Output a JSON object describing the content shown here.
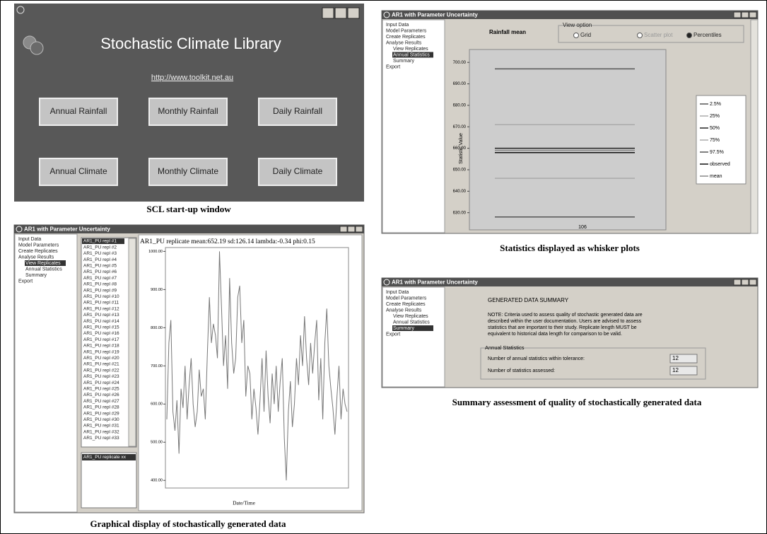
{
  "startup": {
    "title": "Stochastic Climate Library",
    "url": "http://www.toolkit.net.au",
    "buttons": [
      "Annual Rainfall",
      "Monthly Rainfall",
      "Daily Rainfall",
      "Annual Climate",
      "Monthly Climate",
      "Daily Climate"
    ],
    "caption": "SCL start-up window"
  },
  "whisker": {
    "window_title": "AR1 with Parameter Uncertainty",
    "tree": [
      "Input Data",
      "Model Parameters",
      "Create Replicates",
      "Analyse Results",
      "View Replicates",
      "Annual Statistics",
      "Summary",
      "Export"
    ],
    "selected": 5,
    "heading": "Rainfall mean",
    "view_option": "View option",
    "options": [
      "Grid",
      "Scatter plot",
      "Percentiles"
    ],
    "chosen_option": 2,
    "y_label": "Statistic Value",
    "ylim": [
      622,
      706
    ],
    "yticks": [
      {
        "value": 700,
        "label": "700.00"
      },
      {
        "value": 690,
        "label": "690.00"
      },
      {
        "value": 680,
        "label": "680.00"
      },
      {
        "value": 670,
        "label": "670.00"
      },
      {
        "value": 660,
        "label": "660.00"
      },
      {
        "value": 650,
        "label": "650.00"
      },
      {
        "value": 640,
        "label": "640.00"
      },
      {
        "value": 630,
        "label": "630.00"
      }
    ],
    "x_label": "106",
    "series": [
      {
        "name": "2.5%",
        "color": "#555555",
        "value": 628
      },
      {
        "name": "25%",
        "color": "#aaaaaa",
        "value": 646
      },
      {
        "name": "50%",
        "color": "#222222",
        "value": 660
      },
      {
        "name": "75%",
        "color": "#aaaaaa",
        "value": 671
      },
      {
        "name": "97.5%",
        "color": "#555555",
        "value": 697
      },
      {
        "name": "observed",
        "color": "#111111",
        "value": 658
      },
      {
        "name": "mean",
        "color": "#888888",
        "value": 659
      }
    ],
    "caption": "Statistics displayed as whisker plots"
  },
  "summary": {
    "window_title": "AR1 with Parameter Uncertainty",
    "tree": [
      "Input Data",
      "Model Parameters",
      "Create Replicates",
      "Analyse Results",
      "View Replicates",
      "Annual Statistics",
      "Summary",
      "Export"
    ],
    "selected": 6,
    "heading": "GENERATED DATA SUMMARY",
    "note": [
      "NOTE: Criteria used to assess quality of stochastic generated data are",
      "described within the user documentation. Users are advised to assess",
      "statistics that are important to their study. Replicate length MUST be",
      "equivalent to historical data length for comparison to be valid."
    ],
    "group": "Annual Statistics",
    "rows": [
      {
        "label": "Number of annual statistics within tolerance:",
        "value": 12
      },
      {
        "label": "Number of statistics assessed:",
        "value": 12
      }
    ],
    "caption": "Summary assessment of quality of stochastically generated data"
  },
  "replicates": {
    "window_title": "AR1 with Parameter Uncertainty",
    "tree": [
      "Input Data",
      "Model Parameters",
      "Create Replicates",
      "Analyse Results",
      "View Replicates",
      "Annual Statistics",
      "Summary",
      "Export"
    ],
    "selected": 4,
    "list": [
      "AR1_PU repl #1",
      "AR1_PU repl #2",
      "AR1_PU repl #3",
      "AR1_PU repl #4",
      "AR1_PU repl #5",
      "AR1_PU repl #6",
      "AR1_PU repl #7",
      "AR1_PU repl #8",
      "AR1_PU repl #9",
      "AR1_PU repl #10",
      "AR1_PU repl #11",
      "AR1_PU repl #12",
      "AR1_PU repl #13",
      "AR1_PU repl #14",
      "AR1_PU repl #15",
      "AR1_PU repl #16",
      "AR1_PU repl #17",
      "AR1_PU repl #18",
      "AR1_PU repl #19",
      "AR1_PU repl #20",
      "AR1_PU repl #21",
      "AR1_PU repl #22",
      "AR1_PU repl #23",
      "AR1_PU repl #24",
      "AR1_PU repl #25",
      "AR1_PU repl #26",
      "AR1_PU repl #27",
      "AR1_PU repl #28",
      "AR1_PU repl #29",
      "AR1_PU repl #30",
      "AR1_PU repl #31",
      "AR1_PU repl #32",
      "AR1_PU repl #33"
    ],
    "selected_item": "AR1_PU replicate xx",
    "plot_title": "AR1_PU replicate   mean:652.19  sd:126.14  lambda:-0.34  phi:0.15",
    "ylim": [
      380,
      1010
    ],
    "yticks": [
      {
        "value": 1000,
        "label": "1000.00"
      },
      {
        "value": 900,
        "label": "900.00"
      },
      {
        "value": 800,
        "label": "800.00"
      },
      {
        "value": 700,
        "label": "700.00"
      },
      {
        "value": 600,
        "label": "600.00"
      },
      {
        "value": 500,
        "label": "500.00"
      },
      {
        "value": 400,
        "label": "400.00"
      }
    ],
    "x_label": "Date/Time",
    "color": "#777777",
    "values": [
      560,
      760,
      820,
      580,
      530,
      610,
      470,
      640,
      590,
      700,
      560,
      650,
      720,
      600,
      540,
      580,
      690,
      620,
      640,
      560,
      730,
      880,
      760,
      810,
      780,
      720,
      1000,
      850,
      700,
      780,
      640,
      930,
      760,
      680,
      720,
      880,
      910,
      760,
      820,
      620,
      700,
      680,
      560,
      640,
      590,
      520,
      610,
      720,
      580,
      740,
      620,
      550,
      680,
      600,
      700,
      580,
      660,
      720,
      510,
      400,
      580,
      660,
      540,
      600,
      720,
      650,
      780,
      700,
      830,
      720,
      650,
      760,
      680,
      760,
      820,
      610,
      720,
      560,
      760,
      850,
      700,
      640,
      590,
      520,
      620,
      700,
      560,
      640,
      600,
      580
    ],
    "caption": "Graphical display of stochastically generated data"
  }
}
